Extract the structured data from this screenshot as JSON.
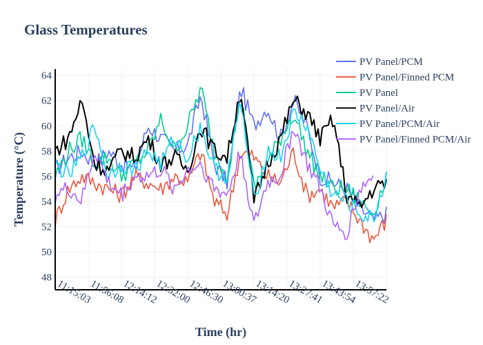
{
  "chart_data": {
    "type": "line",
    "title": "Glass Temperatures",
    "xlabel": "Time (hr)",
    "ylabel": "Temperature (°C)",
    "ylim": [
      47,
      64.5
    ],
    "y_ticks": [
      48,
      50,
      52,
      54,
      56,
      58,
      60,
      62,
      64
    ],
    "x_range": [
      0,
      100
    ],
    "x_ticks": [
      {
        "pos": 10,
        "label": "11:15:03"
      },
      {
        "pos": 20,
        "label": "11:56:08"
      },
      {
        "pos": 30,
        "label": "12:14:12"
      },
      {
        "pos": 40,
        "label": "12:32:00"
      },
      {
        "pos": 50,
        "label": "12:46:30"
      },
      {
        "pos": 60,
        "label": "13:00:37"
      },
      {
        "pos": 70,
        "label": "13:14:20"
      },
      {
        "pos": 80,
        "label": "13:27:41"
      },
      {
        "pos": 90,
        "label": "13:43:54"
      },
      {
        "pos": 100,
        "label": "13:57:22"
      }
    ],
    "grid": true,
    "legend_position": "top-right",
    "series": [
      {
        "name": "PV Panel/PCM",
        "color": "#636efa",
        "x": [
          0,
          4,
          8,
          12,
          16,
          20,
          24,
          28,
          32,
          36,
          40,
          44,
          48,
          52,
          56,
          60,
          64,
          68,
          72,
          76,
          80,
          84,
          88,
          92,
          96,
          100
        ],
        "values": [
          56.5,
          57.5,
          58,
          57,
          58,
          57,
          56.5,
          60,
          59,
          58,
          58.5,
          62.5,
          57,
          55.5,
          63,
          60,
          61.5,
          59,
          62,
          60,
          56,
          55.5,
          55,
          53.5,
          52.5,
          53
        ]
      },
      {
        "name": "PV Panel/Finned PCM",
        "color": "#ef553b",
        "x": [
          0,
          4,
          8,
          12,
          16,
          20,
          24,
          28,
          32,
          36,
          40,
          44,
          48,
          52,
          56,
          60,
          64,
          68,
          72,
          76,
          80,
          84,
          88,
          92,
          96,
          100
        ],
        "values": [
          52.5,
          55,
          56,
          55.5,
          55,
          54.5,
          56,
          55.5,
          55,
          56,
          55.5,
          58,
          54,
          53,
          58,
          57.5,
          56,
          55.5,
          58,
          54.5,
          55,
          53.5,
          54,
          52.5,
          51,
          52.5
        ]
      },
      {
        "name": "PV Panel",
        "color": "#00cc96",
        "x": [
          0,
          4,
          8,
          12,
          16,
          20,
          24,
          28,
          32,
          36,
          40,
          44,
          48,
          52,
          56,
          60,
          64,
          68,
          72,
          76,
          80,
          84,
          88,
          92,
          96,
          100
        ],
        "values": [
          56,
          58,
          59,
          57,
          57.5,
          56,
          57,
          58,
          60.5,
          58,
          60,
          63,
          58,
          56,
          62.5,
          55,
          57,
          59,
          61,
          58,
          56,
          55,
          55,
          54,
          53,
          56
        ]
      },
      {
        "name": "PV Panel/Air",
        "color": "#000000",
        "x": [
          0,
          4,
          8,
          12,
          16,
          20,
          24,
          28,
          32,
          36,
          40,
          44,
          48,
          52,
          56,
          60,
          64,
          68,
          72,
          76,
          80,
          84,
          88,
          92,
          96,
          100
        ],
        "values": [
          58,
          59,
          62,
          57,
          56.5,
          58,
          57.5,
          59,
          57,
          57.5,
          56.5,
          60,
          58,
          57.5,
          63,
          54,
          57,
          59,
          62,
          61,
          59,
          60.5,
          54.5,
          53.5,
          55,
          55.5
        ]
      },
      {
        "name": "PV Panel/PCM/Air",
        "color": "#19d3f3",
        "x": [
          0,
          4,
          8,
          12,
          16,
          20,
          24,
          28,
          32,
          36,
          40,
          44,
          48,
          52,
          56,
          60,
          64,
          68,
          72,
          76,
          80,
          84,
          88,
          92,
          96,
          100
        ],
        "values": [
          57,
          56,
          57.5,
          60,
          56,
          57,
          56.5,
          58,
          57,
          59,
          57.5,
          60,
          56.5,
          56,
          62,
          54,
          58,
          57.5,
          61,
          60,
          56.5,
          54.5,
          54,
          53,
          52.5,
          56
        ]
      },
      {
        "name": "PV Panel/Finned PCM/Air",
        "color": "#ab63fa",
        "x": [
          0,
          4,
          8,
          12,
          16,
          20,
          24,
          28,
          32,
          36,
          40,
          44,
          48,
          52,
          56,
          60,
          64,
          68,
          72,
          76,
          80,
          84,
          88,
          92,
          96
        ],
        "values": [
          54.5,
          55,
          54,
          58,
          55.5,
          54.5,
          56,
          56,
          56.5,
          55,
          56.5,
          57,
          55,
          54.5,
          58,
          52,
          55.5,
          56,
          60,
          57,
          55,
          52,
          51.5,
          55,
          56
        ]
      }
    ]
  }
}
